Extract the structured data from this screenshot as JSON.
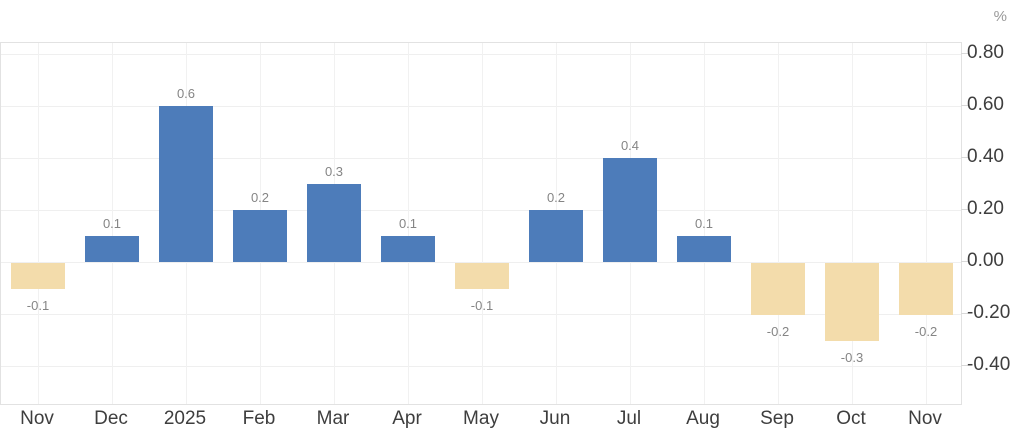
{
  "chart_data": {
    "type": "bar",
    "title": "",
    "xlabel": "",
    "ylabel": "%",
    "categories": [
      "Nov",
      "Dec",
      "2025",
      "Feb",
      "Mar",
      "Apr",
      "May",
      "Jun",
      "Jul",
      "Aug",
      "Sep",
      "Oct",
      "Nov"
    ],
    "values": [
      -0.1,
      0.1,
      0.6,
      0.2,
      0.3,
      0.1,
      -0.1,
      0.2,
      0.4,
      0.1,
      -0.2,
      -0.3,
      -0.2
    ],
    "data_labels": [
      "-0.1",
      "0.1",
      "0.6",
      "0.2",
      "0.3",
      "0.1",
      "-0.1",
      "0.2",
      "0.4",
      "0.1",
      "-0.2",
      "-0.3",
      "-0.2"
    ],
    "y_ticks": [
      {
        "label": "0.80",
        "value": 0.8
      },
      {
        "label": "0.60",
        "value": 0.6
      },
      {
        "label": "0.40",
        "value": 0.4
      },
      {
        "label": "0.20",
        "value": 0.2
      },
      {
        "label": "0.00",
        "value": 0.0
      },
      {
        "label": "-0.20",
        "value": -0.2
      },
      {
        "label": "-0.40",
        "value": -0.4
      }
    ],
    "ylim": [
      -0.56,
      0.84
    ],
    "grid": true,
    "legend": "none",
    "colors": {
      "positive_bar": "#4d7cba",
      "negative_bar": "#f3dcab",
      "grid_h": "#efefef",
      "grid_v": "#f1f1f1",
      "plot_border": "#e2e2e2",
      "axis_label": "#3e3e3e",
      "data_label": "#858585",
      "unit_label": "#999999",
      "background": "#ffffff"
    }
  }
}
